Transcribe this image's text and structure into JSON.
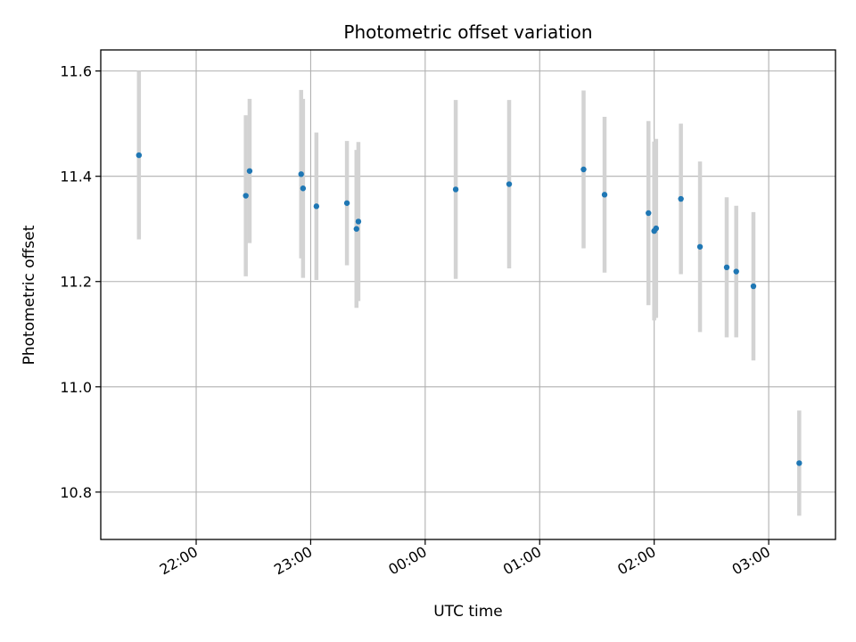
{
  "chart_data": {
    "type": "scatter",
    "title": "Photometric offset variation",
    "xlabel": "UTC time",
    "ylabel": "Photometric offset",
    "x_start": "21:00",
    "x_range": [
      "21:10",
      "03:35"
    ],
    "x_ticks": [
      "22:00",
      "23:00",
      "00:00",
      "01:00",
      "02:00",
      "03:00"
    ],
    "ylim": [
      10.71,
      11.64
    ],
    "y_ticks": [
      "10.8",
      "11.0",
      "11.2",
      "11.4",
      "11.6"
    ],
    "grid": true,
    "colors": {
      "point": "#1f77b4",
      "errorbar": "#d3d3d3",
      "grid": "#b0b0b0"
    },
    "points": [
      {
        "x": "21:30",
        "y": 11.44,
        "yerr": 0.16
      },
      {
        "x": "22:26",
        "y": 11.363,
        "yerr": 0.153
      },
      {
        "x": "22:28",
        "y": 11.41,
        "yerr": 0.137
      },
      {
        "x": "22:55",
        "y": 11.404,
        "yerr": 0.16
      },
      {
        "x": "22:56",
        "y": 11.377,
        "yerr": 0.17
      },
      {
        "x": "23:03",
        "y": 11.343,
        "yerr": 0.14
      },
      {
        "x": "23:19",
        "y": 11.349,
        "yerr": 0.118
      },
      {
        "x": "23:24",
        "y": 11.3,
        "yerr": 0.15
      },
      {
        "x": "23:25",
        "y": 11.314,
        "yerr": 0.151
      },
      {
        "x": "00:16",
        "y": 11.375,
        "yerr": 0.17
      },
      {
        "x": "00:44",
        "y": 11.385,
        "yerr": 0.16
      },
      {
        "x": "01:23",
        "y": 11.413,
        "yerr": 0.15
      },
      {
        "x": "01:34",
        "y": 11.365,
        "yerr": 0.148
      },
      {
        "x": "01:57",
        "y": 11.33,
        "yerr": 0.175
      },
      {
        "x": "02:00",
        "y": 11.296,
        "yerr": 0.17
      },
      {
        "x": "02:01",
        "y": 11.301,
        "yerr": 0.17
      },
      {
        "x": "02:14",
        "y": 11.357,
        "yerr": 0.143
      },
      {
        "x": "02:24",
        "y": 11.266,
        "yerr": 0.162
      },
      {
        "x": "02:38",
        "y": 11.227,
        "yerr": 0.133
      },
      {
        "x": "02:43",
        "y": 11.219,
        "yerr": 0.125
      },
      {
        "x": "02:52",
        "y": 11.191,
        "yerr": 0.141
      },
      {
        "x": "03:16",
        "y": 10.855,
        "yerr": 0.1
      }
    ]
  }
}
